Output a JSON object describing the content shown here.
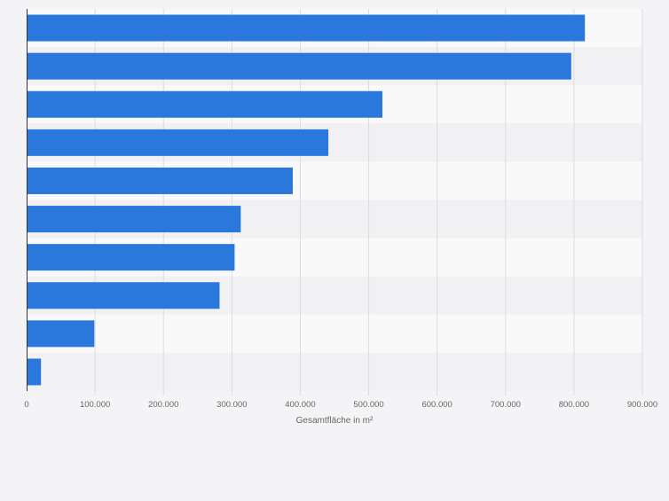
{
  "chart_data": {
    "type": "bar",
    "orientation": "horizontal",
    "categories": [
      "",
      "",
      "",
      "",
      "",
      "",
      "",
      "",
      "",
      ""
    ],
    "values": [
      816000,
      796000,
      520000,
      441000,
      389000,
      313000,
      304000,
      282000,
      99000,
      21000
    ],
    "title": "",
    "xlabel": "Gesamtfläche in m²",
    "ylabel": "",
    "xlim": [
      0,
      900000
    ],
    "tick_labels": [
      "0",
      "100.000",
      "200.000",
      "300.000",
      "400.000",
      "500.000",
      "600.000",
      "700.000",
      "800.000",
      "900.000"
    ],
    "tick_values": [
      0,
      100000,
      200000,
      300000,
      400000,
      500000,
      600000,
      700000,
      800000,
      900000
    ],
    "grid": true,
    "legend": "none",
    "colors": {
      "bar": "#2a78dc",
      "band_light": "#f9f9fa",
      "band_dark": "#f1f1f3",
      "grid": "#dcdcde",
      "axis": "#333333",
      "text": "#666666"
    }
  }
}
